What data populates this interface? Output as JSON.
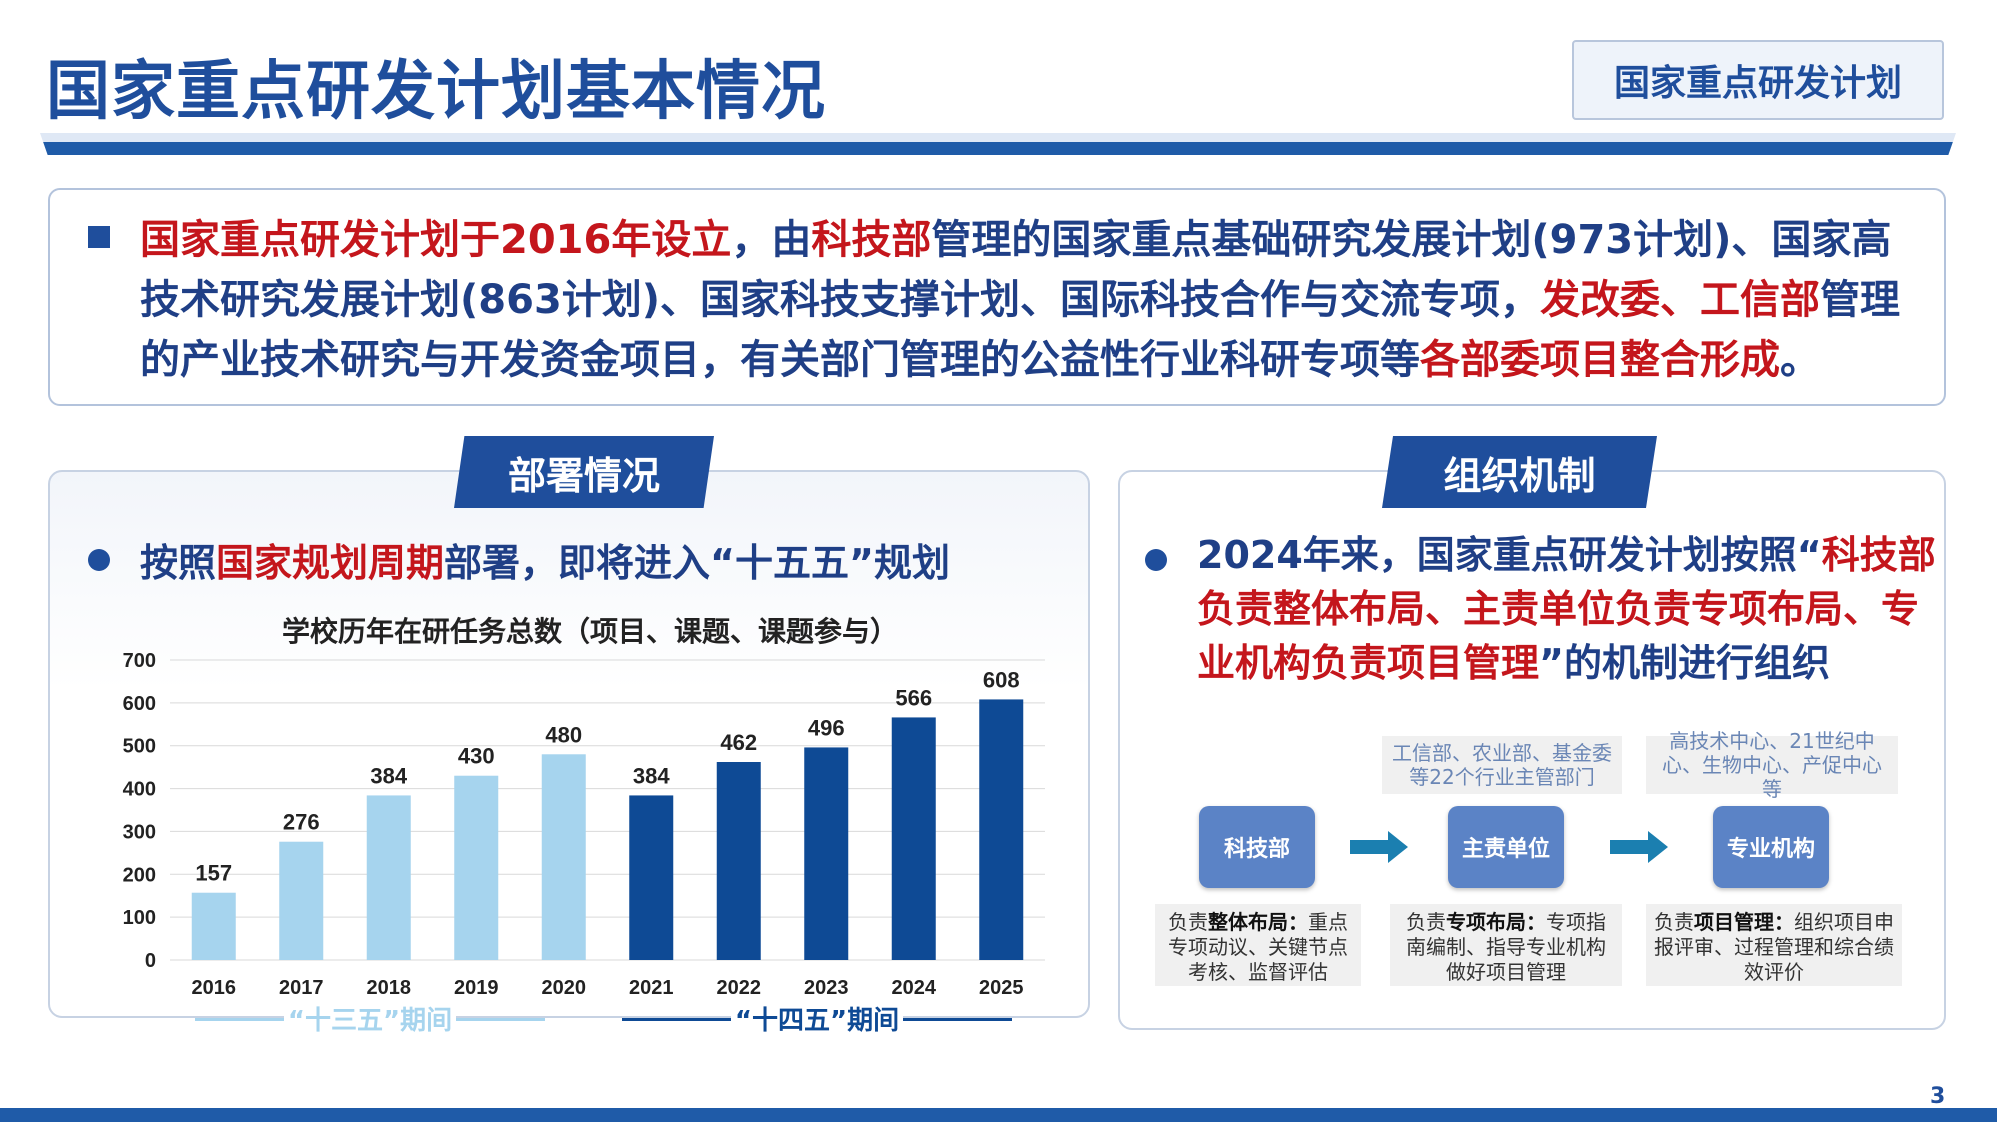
{
  "header": {
    "title": "国家重点研发计划基本情况",
    "tag": "国家重点研发计划"
  },
  "intro": {
    "p1": "国家重点研发计划于2016年设立",
    "p2": "，由",
    "p3": "科技部",
    "p4": "管理的国家重点基础研究发展计划(973计划)、国家高技术研究发展计划(863计划)、国家科技支撑计划、国际科技合作与交流专项，",
    "p5": "发改委、工信部",
    "p6": "管理的产业技术研究与开发资金项目，有关部门管理的公益性行业科研专项等",
    "p7": "各部委项目整合形成",
    "p8": "。"
  },
  "left_panel": {
    "tab": "部署情况",
    "bullet_a": "按照",
    "bullet_b": "国家规划周期",
    "bullet_c": "部署，即将进入“十五五”规划",
    "chart_title": "学校历年在研任务总数（项目、课题、课题参与）",
    "period_1": "“十三五”期间",
    "period_2": "“十四五”期间"
  },
  "right_panel": {
    "tab": "组织机制",
    "bullet_a": "2024年来，国家重点研发计划按照“",
    "bullet_b": "科技部负责整体布局、主责单位负责专项布局、专业机构负责项目管理",
    "bullet_c": "”的机制进行组织",
    "note_1": "工信部、农业部、基金委等22个行业主管部门",
    "note_2": "高技术中心、21世纪中心、生物中心、产促中心等",
    "node_1": "科技部",
    "node_2": "主责单位",
    "node_3": "专业机构",
    "desc_1a": "负责",
    "desc_1b": "整体布局：",
    "desc_1c": "重点专项动议、关键节点考核、监督评估",
    "desc_2a": "负责",
    "desc_2b": "专项布局：",
    "desc_2c": "专项指南编制、指导专业机构做好项目管理",
    "desc_3a": "负责",
    "desc_3b": "项目管理：",
    "desc_3c": "组织项目申报评审、过程管理和综合绩效评价"
  },
  "page_number": "3",
  "colors": {
    "primary": "#1f4e9c",
    "accent_red": "#c4161c",
    "bar_light": "#a6d4ee",
    "bar_dark": "#0e4a95"
  },
  "chart_data": {
    "type": "bar",
    "title": "学校历年在研任务总数（项目、课题、课题参与）",
    "categories": [
      "2016",
      "2017",
      "2018",
      "2019",
      "2020",
      "2021",
      "2022",
      "2023",
      "2024",
      "2025"
    ],
    "values": [
      157,
      276,
      384,
      430,
      480,
      384,
      462,
      496,
      566,
      608
    ],
    "yticks": [
      0,
      100,
      200,
      300,
      400,
      500,
      600,
      700
    ],
    "ylim": [
      0,
      700
    ],
    "grid": true,
    "groups": [
      {
        "name": "“十三五”期间",
        "from": 0,
        "to": 4,
        "color": "#a6d4ee"
      },
      {
        "name": "“十四五”期间",
        "from": 5,
        "to": 9,
        "color": "#0e4a95"
      }
    ]
  }
}
